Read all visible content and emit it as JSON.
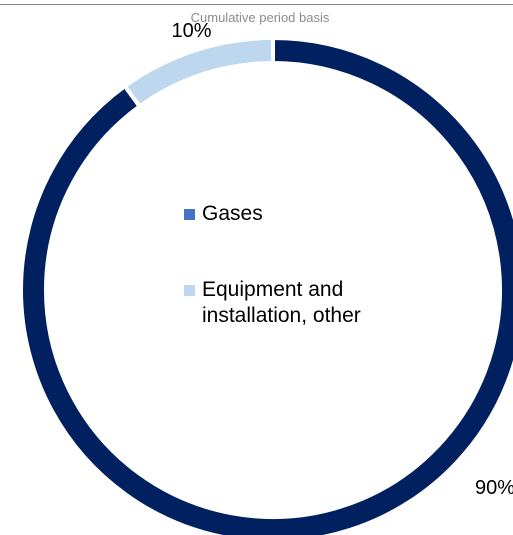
{
  "chart_data": {
    "type": "pie",
    "subtitle": "Cumulative period basis",
    "categories": [
      "Gases",
      "Equipment and installation, other"
    ],
    "values": [
      90,
      10
    ],
    "value_labels": [
      "90%",
      "10%"
    ],
    "colors": [
      "#002060",
      "#bdd7ee"
    ],
    "legend_colors": [
      "#4472c4",
      "#bdd7ee"
    ],
    "donut": true,
    "legend_position": "center"
  }
}
